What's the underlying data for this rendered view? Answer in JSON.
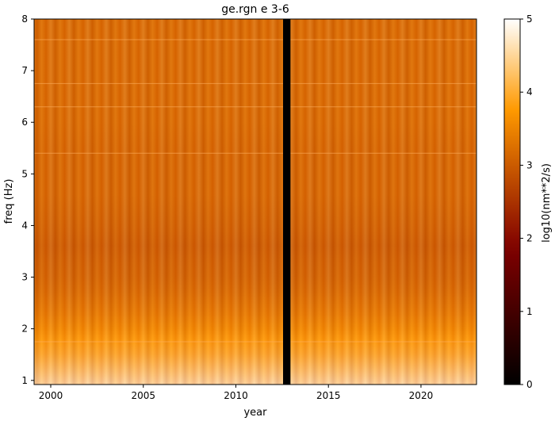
{
  "chart_data": {
    "type": "heatmap",
    "title": "ge.rgn e 3-6",
    "xlabel": "year",
    "ylabel": "freq (Hz)",
    "xlim": [
      1999.1,
      2023.0
    ],
    "ylim": [
      0.92,
      8.0
    ],
    "x_ticks": [
      2000,
      2005,
      2010,
      2015,
      2020
    ],
    "y_ticks": [
      1,
      2,
      3,
      4,
      5,
      6,
      7,
      8
    ],
    "gap": {
      "start": 2012.55,
      "end": 2012.95,
      "color": "#000000"
    },
    "seasonal_period_years": 1,
    "value_profile": {
      "freq": [
        0.92,
        1.2,
        1.5,
        1.8,
        2.0,
        2.3,
        2.7,
        3.0,
        3.3,
        3.6,
        3.9,
        4.2,
        4.6,
        5.0,
        5.5,
        6.0,
        6.5,
        7.0,
        7.5,
        8.0
      ],
      "log10_power": [
        4.6,
        4.3,
        4.0,
        3.8,
        3.6,
        3.4,
        3.2,
        3.1,
        3.05,
        3.0,
        3.05,
        3.1,
        3.15,
        3.15,
        3.15,
        3.2,
        3.2,
        3.2,
        3.2,
        3.2
      ]
    },
    "seasonal_amplitude": 0.35,
    "horizontal_lines_hz": [
      1.75,
      5.4,
      6.3,
      6.75,
      7.6
    ],
    "colorbar": {
      "label": "log10(nm**2/s)",
      "range": [
        0,
        5
      ],
      "ticks": [
        0,
        1,
        2,
        3,
        4,
        5
      ],
      "colormap": "gist_heat"
    },
    "grid": false
  }
}
